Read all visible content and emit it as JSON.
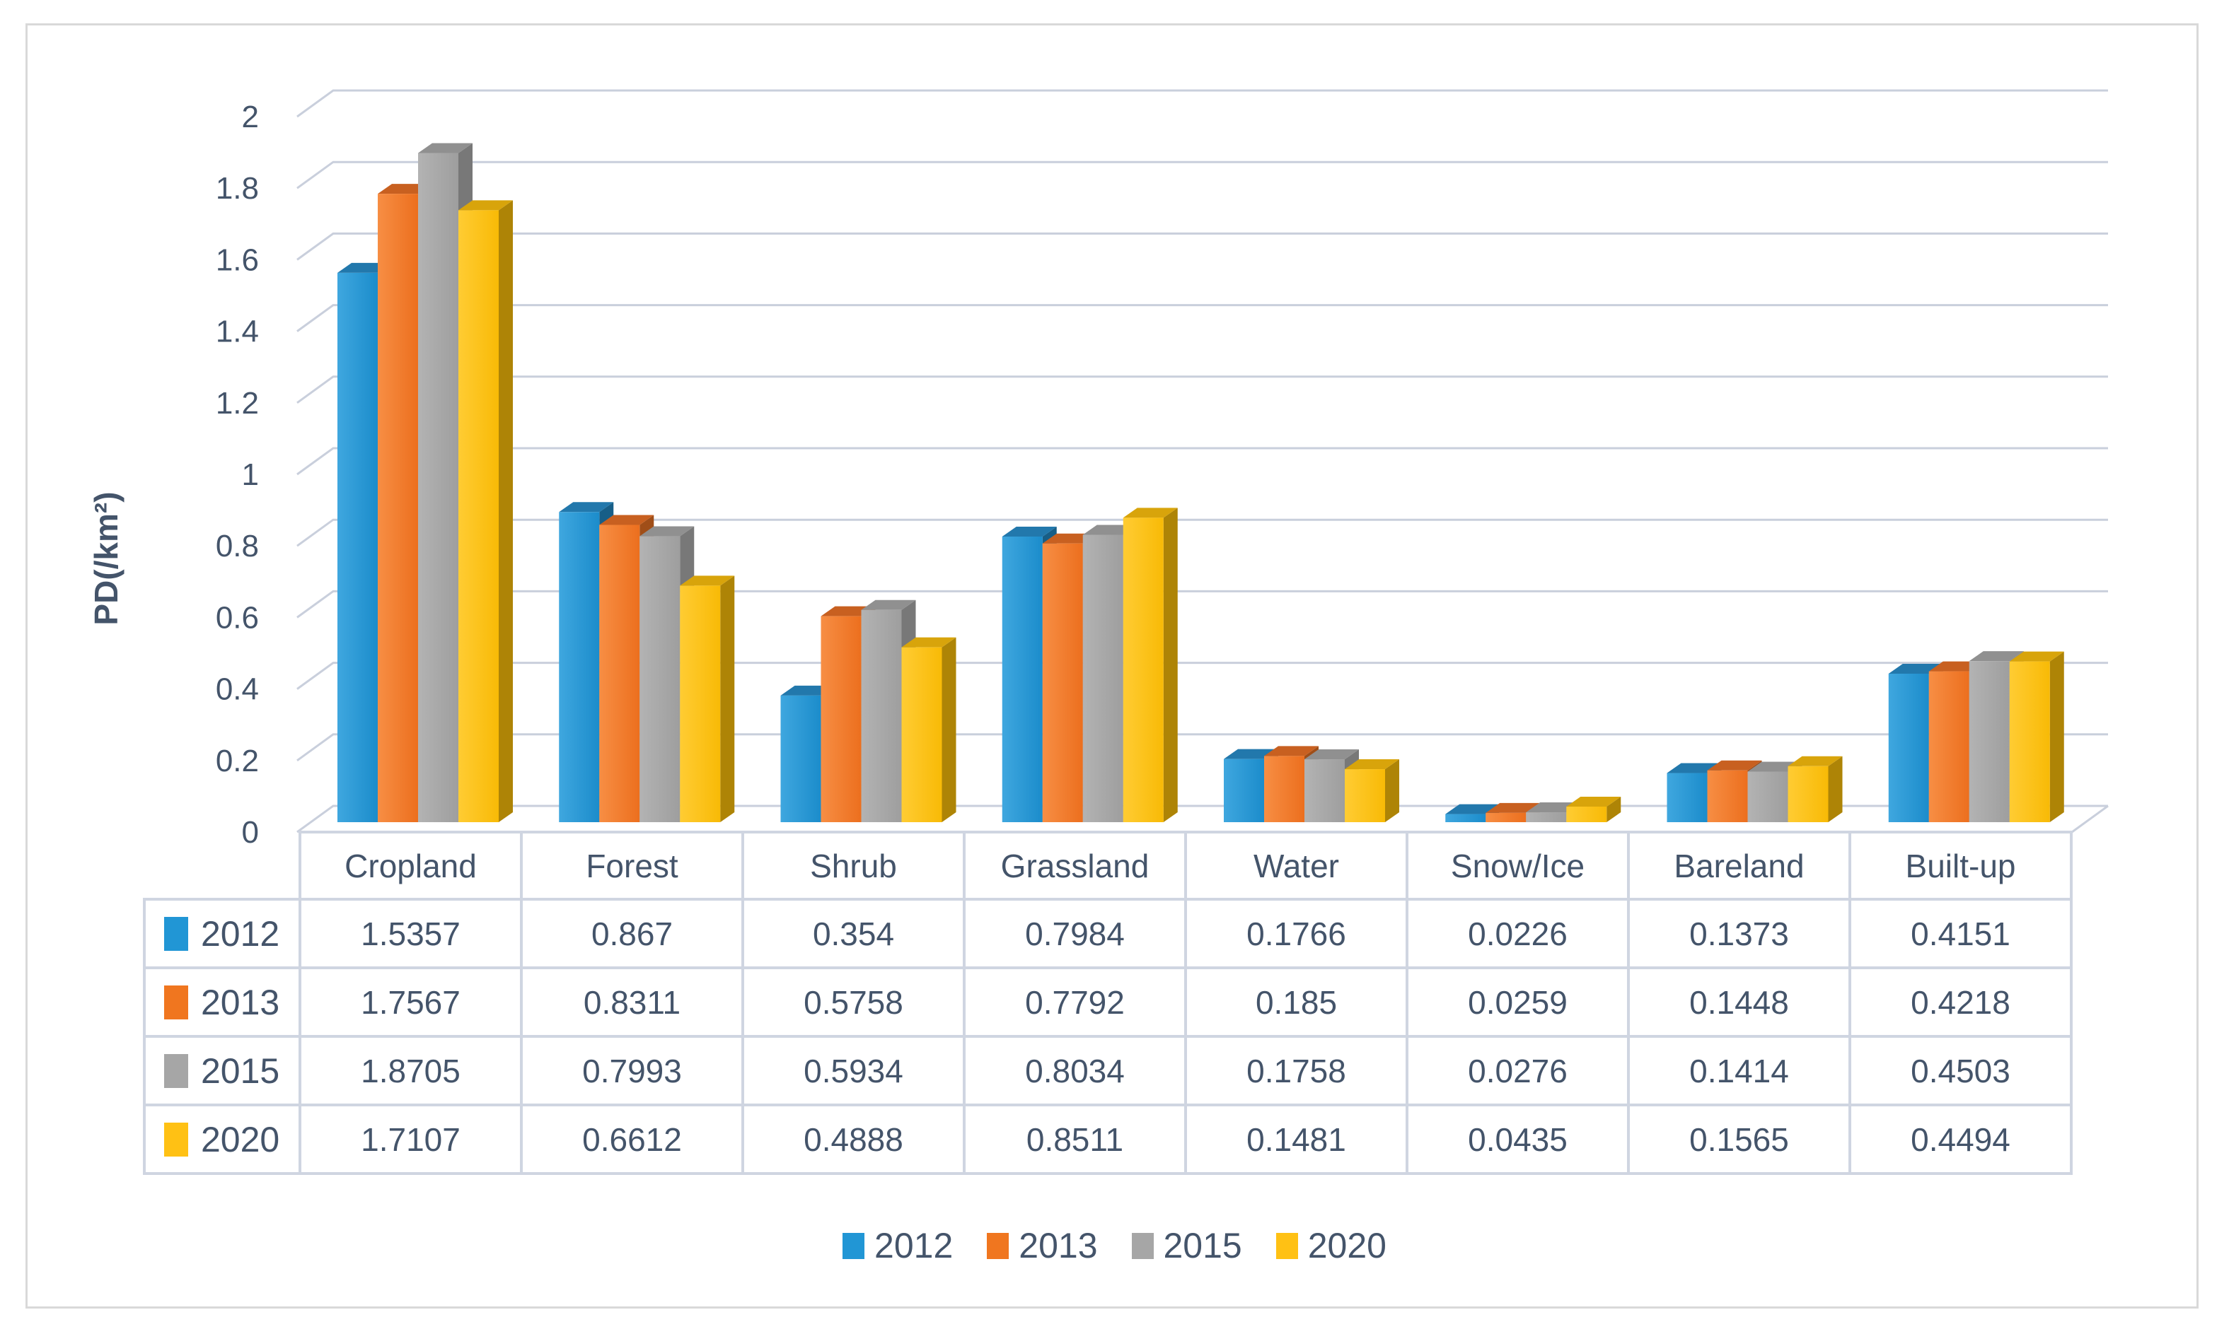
{
  "chart_data": {
    "type": "bar",
    "title": "",
    "xlabel": "",
    "ylabel": "PD(/km²)",
    "ylim": [
      0,
      2
    ],
    "ytick_step": 0.2,
    "grid": true,
    "style": "excel-3d-clustered-column",
    "legend_position": "bottom",
    "data_table_shown": true,
    "categories": [
      "Cropland",
      "Forest",
      "Shrub",
      "Grassland",
      "Water",
      "Snow/Ice",
      "Bareland",
      "Built-up"
    ],
    "series": [
      {
        "name": "2012",
        "color": "#2196D5",
        "front_grad": [
          "#3FA7DF",
          "#1B8CCB"
        ],
        "top": "#2278AC",
        "side": "#175E87",
        "values": [
          1.5357,
          0.867,
          0.354,
          0.7984,
          0.1766,
          0.0226,
          0.1373,
          0.4151
        ]
      },
      {
        "name": "2013",
        "color": "#F0761F",
        "front_grad": [
          "#F78E44",
          "#EC6F1E"
        ],
        "top": "#C86020",
        "side": "#A04E18",
        "values": [
          1.7567,
          0.8311,
          0.5758,
          0.7792,
          0.185,
          0.0259,
          0.1448,
          0.4218
        ]
      },
      {
        "name": "2015",
        "color": "#A6A6A6",
        "front_grad": [
          "#B3B3B3",
          "#9E9E9E"
        ],
        "top": "#909090",
        "side": "#787878",
        "values": [
          1.8705,
          0.7993,
          0.5934,
          0.8034,
          0.1758,
          0.0276,
          0.1414,
          0.4503
        ]
      },
      {
        "name": "2020",
        "color": "#FFC114",
        "front_grad": [
          "#FFCC33",
          "#F8BA06"
        ],
        "top": "#D8A40B",
        "side": "#AE8406",
        "values": [
          1.7107,
          0.6612,
          0.4888,
          0.8511,
          0.1481,
          0.0435,
          0.1565,
          0.4494
        ]
      }
    ],
    "colors": {
      "grid": "#C9CFDC",
      "text": "#44546A",
      "table_border": "#CFD5E1",
      "frame": "#D9D9D9"
    }
  }
}
